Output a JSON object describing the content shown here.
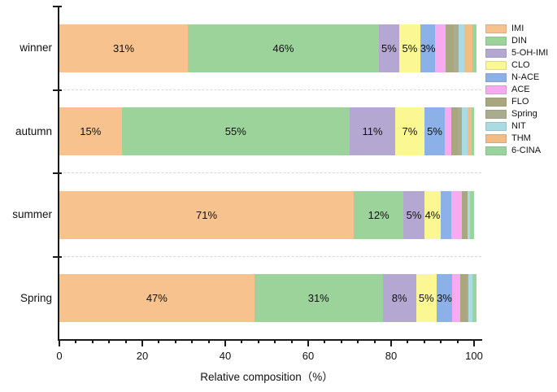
{
  "chart_data": {
    "type": "bar",
    "variant": "horizontal-stacked",
    "title": "",
    "xlabel": "Relative composition（%）",
    "ylabel": "",
    "xlim": [
      0,
      100
    ],
    "x_major_ticks": [
      0,
      20,
      40,
      60,
      80,
      100
    ],
    "x_minor_step": 4,
    "grid": "dashed-horizontal-between-categories",
    "legend_position": "right",
    "series": [
      {
        "name": "IMI",
        "color": "#F8C28E"
      },
      {
        "name": "DIN",
        "color": "#9CD39B"
      },
      {
        "name": "5-OH-IMI",
        "color": "#B4A8D2"
      },
      {
        "name": "CLO",
        "color": "#FBF894"
      },
      {
        "name": "N-ACE",
        "color": "#8CB0E8"
      },
      {
        "name": "ACE",
        "color": "#F7AAF0"
      },
      {
        "name": "FLO",
        "color": "#A9A77E"
      },
      {
        "name": "Spring",
        "color": "#A9AC8E"
      },
      {
        "name": "NIT",
        "color": "#AADBE3"
      },
      {
        "name": "THM",
        "color": "#F2BC86"
      },
      {
        "name": "6-CINA",
        "color": "#98D49E"
      }
    ],
    "categories": [
      "winner",
      "autumn",
      "summer",
      "Spring"
    ],
    "rows": [
      {
        "category": "winner",
        "values": [
          31,
          46,
          5,
          5,
          3,
          2.5,
          2,
          1,
          1.5,
          2,
          1
        ],
        "labels": [
          "31%",
          "46%",
          "5%",
          "5%",
          "3%",
          "",
          "",
          "",
          "",
          "",
          ""
        ]
      },
      {
        "category": "autumn",
        "values": [
          15,
          55,
          11,
          7,
          5,
          1.5,
          1.5,
          1,
          1.5,
          1,
          0.5
        ],
        "labels": [
          "15%",
          "55%",
          "11%",
          "7%",
          "5%",
          "",
          "",
          "",
          "",
          "",
          ""
        ]
      },
      {
        "category": "summer",
        "values": [
          71,
          12,
          5,
          4,
          2.5,
          2.5,
          1.5,
          0,
          0.5,
          0,
          1
        ],
        "labels": [
          "71%",
          "12%",
          "5%",
          "4%",
          "",
          "",
          "",
          "",
          "",
          "",
          ""
        ]
      },
      {
        "category": "Spring",
        "values": [
          47,
          31,
          8,
          5,
          3,
          2,
          1.5,
          0.5,
          1,
          0,
          1
        ],
        "labels": [
          "47%",
          "31%",
          "8%",
          "5%",
          "3%",
          "",
          "",
          "",
          "",
          "",
          ""
        ]
      }
    ],
    "colors": {
      "axis": "#1a1a1a",
      "gridline": "#d8d8d8",
      "text": "#000000",
      "background": "#ffffff"
    }
  }
}
